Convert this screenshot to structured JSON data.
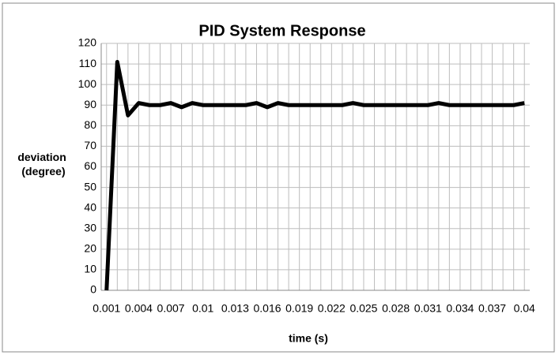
{
  "chart_data": {
    "type": "line",
    "title": "PID System Response",
    "xlabel": "time (s)",
    "ylabel": [
      "deviation",
      "(degree)"
    ],
    "categories": [
      "0.001",
      null,
      null,
      "0.004",
      null,
      null,
      "0.007",
      null,
      null,
      "0.01",
      null,
      null,
      "0.013",
      null,
      null,
      "0.016",
      null,
      null,
      "0.019",
      null,
      null,
      "0.022",
      null,
      null,
      "0.025",
      null,
      null,
      "0.028",
      null,
      null,
      "0.031",
      null,
      null,
      "0.034",
      null,
      null,
      "0.037",
      null,
      null,
      "0.04"
    ],
    "series": [
      {
        "name": "deviation",
        "color": "#000000",
        "values": [
          0,
          111,
          85,
          91,
          90,
          90,
          91,
          89,
          91,
          90,
          90,
          90,
          90,
          90,
          91,
          89,
          91,
          90,
          90,
          90,
          90,
          90,
          90,
          91,
          90,
          90,
          90,
          90,
          90,
          90,
          90,
          91,
          90,
          90,
          90,
          90,
          90,
          90,
          90,
          91
        ]
      }
    ],
    "ylim": [
      0,
      120
    ],
    "yticks": [
      0,
      10,
      20,
      30,
      40,
      50,
      60,
      70,
      80,
      90,
      100,
      110,
      120
    ],
    "grid": true
  }
}
